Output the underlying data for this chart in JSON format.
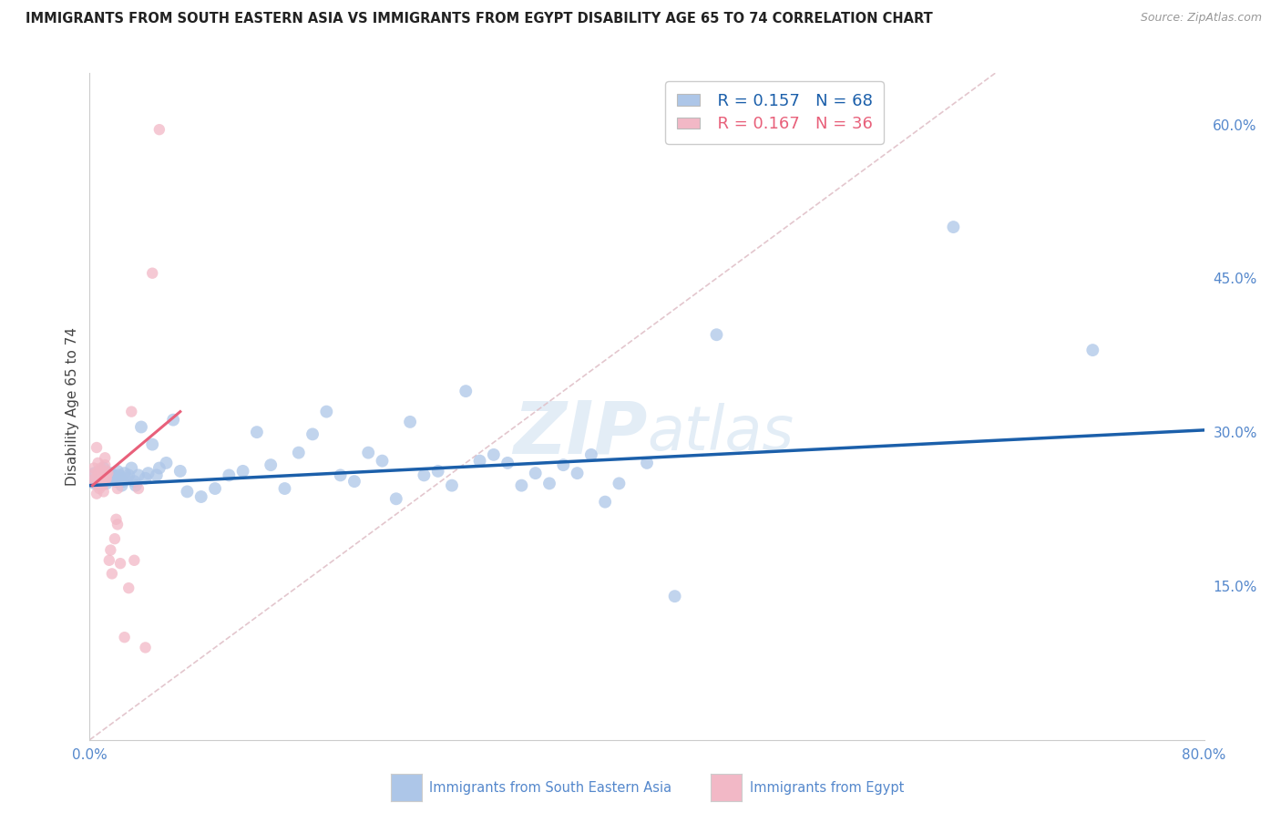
{
  "title": "IMMIGRANTS FROM SOUTH EASTERN ASIA VS IMMIGRANTS FROM EGYPT DISABILITY AGE 65 TO 74 CORRELATION CHART",
  "source": "Source: ZipAtlas.com",
  "ylabel": "Disability Age 65 to 74",
  "xlim": [
    0,
    0.8
  ],
  "ylim": [
    0.0,
    0.65
  ],
  "ytick_labels_right": [
    "60.0%",
    "45.0%",
    "30.0%",
    "15.0%"
  ],
  "ytick_positions_right": [
    0.6,
    0.45,
    0.3,
    0.15
  ],
  "legend_r1": "R = 0.157",
  "legend_n1": "N = 68",
  "legend_r2": "R = 0.167",
  "legend_n2": "N = 36",
  "blue_color": "#adc6e8",
  "blue_line_color": "#1b5faa",
  "pink_color": "#f2b8c6",
  "pink_line_color": "#e8607a",
  "ref_line_color": "#e0c0c8",
  "watermark_color": "#ccdff0",
  "background_color": "#ffffff",
  "grid_color": "#dddddd",
  "label_color": "#5588cc",
  "title_color": "#222222",
  "blue_x": [
    0.005,
    0.008,
    0.01,
    0.012,
    0.013,
    0.015,
    0.016,
    0.017,
    0.018,
    0.019,
    0.02,
    0.021,
    0.022,
    0.023,
    0.024,
    0.025,
    0.027,
    0.028,
    0.03,
    0.032,
    0.033,
    0.035,
    0.037,
    0.04,
    0.042,
    0.045,
    0.048,
    0.05,
    0.055,
    0.06,
    0.065,
    0.07,
    0.08,
    0.09,
    0.1,
    0.11,
    0.12,
    0.13,
    0.14,
    0.15,
    0.16,
    0.17,
    0.18,
    0.19,
    0.2,
    0.21,
    0.22,
    0.23,
    0.24,
    0.25,
    0.26,
    0.27,
    0.28,
    0.29,
    0.3,
    0.31,
    0.32,
    0.33,
    0.34,
    0.35,
    0.36,
    0.37,
    0.38,
    0.4,
    0.42,
    0.45,
    0.62,
    0.72
  ],
  "blue_y": [
    0.255,
    0.26,
    0.265,
    0.25,
    0.255,
    0.26,
    0.255,
    0.258,
    0.253,
    0.252,
    0.262,
    0.258,
    0.255,
    0.248,
    0.252,
    0.26,
    0.255,
    0.258,
    0.265,
    0.252,
    0.248,
    0.258,
    0.305,
    0.255,
    0.26,
    0.288,
    0.258,
    0.265,
    0.27,
    0.312,
    0.262,
    0.242,
    0.237,
    0.245,
    0.258,
    0.262,
    0.3,
    0.268,
    0.245,
    0.28,
    0.298,
    0.32,
    0.258,
    0.252,
    0.28,
    0.272,
    0.235,
    0.31,
    0.258,
    0.262,
    0.248,
    0.34,
    0.272,
    0.278,
    0.27,
    0.248,
    0.26,
    0.25,
    0.268,
    0.26,
    0.278,
    0.232,
    0.25,
    0.27,
    0.14,
    0.395,
    0.5,
    0.38
  ],
  "blue_sizes": [
    350,
    80,
    100,
    100,
    100,
    100,
    100,
    100,
    100,
    100,
    100,
    100,
    100,
    100,
    100,
    100,
    100,
    100,
    100,
    100,
    100,
    100,
    100,
    100,
    100,
    100,
    100,
    100,
    100,
    100,
    100,
    100,
    100,
    100,
    100,
    100,
    100,
    100,
    100,
    100,
    100,
    100,
    100,
    100,
    100,
    100,
    100,
    100,
    100,
    100,
    100,
    100,
    100,
    100,
    100,
    100,
    100,
    100,
    100,
    100,
    100,
    100,
    100,
    100,
    100,
    100,
    100,
    100
  ],
  "pink_x": [
    0.003,
    0.004,
    0.005,
    0.005,
    0.006,
    0.006,
    0.007,
    0.007,
    0.008,
    0.008,
    0.009,
    0.009,
    0.01,
    0.01,
    0.01,
    0.011,
    0.011,
    0.012,
    0.012,
    0.013,
    0.014,
    0.015,
    0.016,
    0.018,
    0.019,
    0.02,
    0.02,
    0.022,
    0.025,
    0.028,
    0.03,
    0.032,
    0.035,
    0.04,
    0.045,
    0.05
  ],
  "pink_y": [
    0.265,
    0.255,
    0.285,
    0.24,
    0.26,
    0.27,
    0.255,
    0.245,
    0.265,
    0.25,
    0.26,
    0.248,
    0.258,
    0.25,
    0.242,
    0.275,
    0.268,
    0.262,
    0.255,
    0.26,
    0.175,
    0.185,
    0.162,
    0.196,
    0.215,
    0.21,
    0.245,
    0.172,
    0.1,
    0.148,
    0.32,
    0.175,
    0.245,
    0.09,
    0.455,
    0.595
  ],
  "pink_sizes": [
    80,
    80,
    80,
    80,
    80,
    80,
    350,
    80,
    80,
    80,
    80,
    80,
    80,
    80,
    80,
    80,
    80,
    80,
    80,
    80,
    80,
    80,
    80,
    80,
    80,
    80,
    80,
    80,
    80,
    80,
    80,
    80,
    80,
    80,
    80,
    80
  ],
  "blue_trend_x": [
    0.0,
    0.8
  ],
  "blue_trend_y": [
    0.248,
    0.302
  ],
  "pink_trend_x": [
    0.002,
    0.065
  ],
  "pink_trend_y": [
    0.248,
    0.32
  ],
  "ref_line_x": [
    0.0,
    0.65
  ],
  "ref_line_y": [
    0.0,
    0.65
  ]
}
